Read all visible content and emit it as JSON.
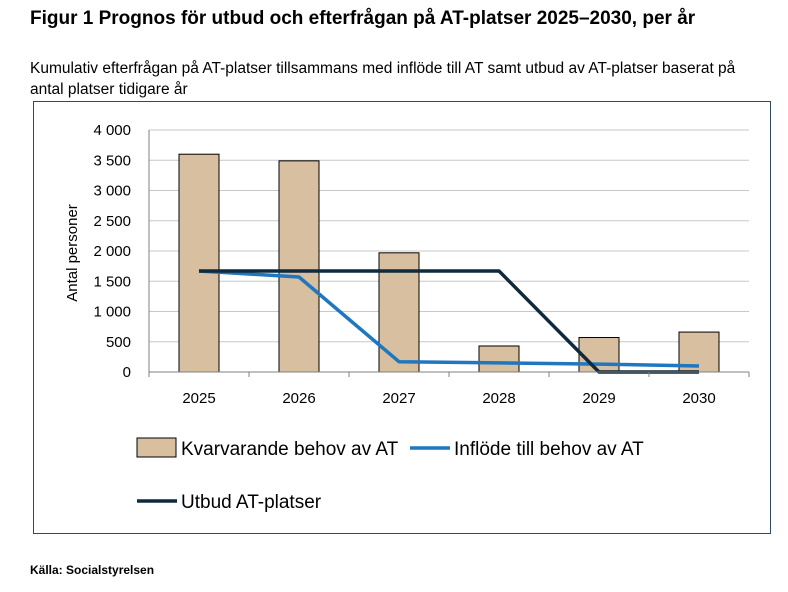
{
  "figure": {
    "title": "Figur 1 Prognos för utbud och efterfrågan på AT-platser 2025–2030, per år",
    "subtitle": "Kumulativ efterfrågan på AT-platser tillsammans med inflöde till AT samt utbud av AT-platser baserat på antal platser tidigare år",
    "source": "Källa: Socialstyrelsen"
  },
  "chart_data": {
    "type": "bar",
    "categories": [
      "2025",
      "2026",
      "2027",
      "2028",
      "2029",
      "2030"
    ],
    "ylabel": "Antal personer",
    "xlabel": "",
    "ylim": [
      0,
      4000
    ],
    "yticks": [
      0,
      500,
      1000,
      1500,
      2000,
      2500,
      3000,
      3500,
      4000
    ],
    "ytick_labels": [
      "0",
      "500",
      "1 000",
      "1 500",
      "2 000",
      "2 500",
      "3 000",
      "3 500",
      "4 000"
    ],
    "grid": true,
    "legend_position": "bottom",
    "series": [
      {
        "name": "Kvarvarande behov av AT",
        "kind": "bar",
        "color": "#d8bfa0",
        "edge_color": "#000000",
        "values": [
          3600,
          3490,
          1970,
          430,
          570,
          660
        ]
      },
      {
        "name": "Inflöde till behov av AT",
        "kind": "line",
        "color": "#1f77c0",
        "values": [
          1670,
          1570,
          170,
          150,
          130,
          100
        ]
      },
      {
        "name": "Utbud AT-platser",
        "kind": "line",
        "color": "#0f2a3c",
        "values": [
          1670,
          1670,
          1670,
          1670,
          0,
          0
        ]
      }
    ]
  }
}
